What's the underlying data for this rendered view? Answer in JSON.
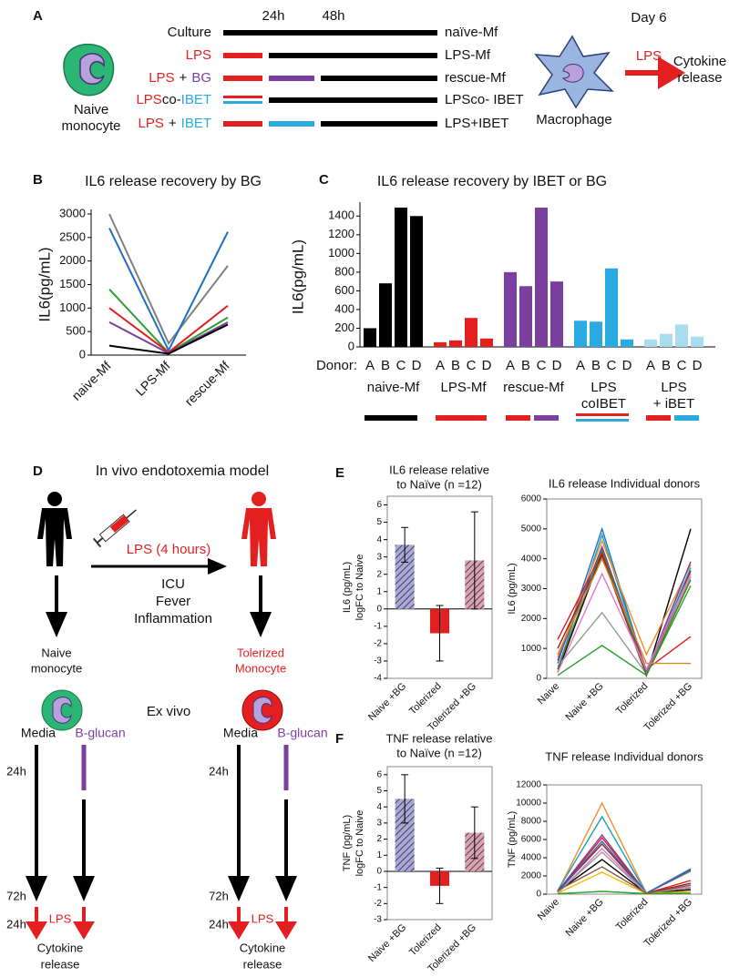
{
  "panel_a": {
    "label": "A",
    "timepoints": [
      "24h",
      "48h"
    ],
    "day": "Day 6",
    "rows": [
      {
        "treatment": [
          "Culture"
        ],
        "result": "naïve-Mf"
      },
      {
        "treatment": [
          "LPS"
        ],
        "result": "LPS-Mf"
      },
      {
        "treatment": [
          "LPS",
          "+",
          "BG"
        ],
        "result": "rescue-Mf"
      },
      {
        "treatment": [
          "LPS",
          "co-",
          "IBET"
        ],
        "result": "LPSco- IBET"
      },
      {
        "treatment": [
          "LPS",
          "+",
          "IBET"
        ],
        "result": "LPS+IBET"
      }
    ],
    "cell": [
      "Naive",
      "monocyte"
    ],
    "macrophage": "Macrophage",
    "stimulus": "LPS",
    "output": [
      "Cytokine",
      "release"
    ]
  },
  "panel_d": {
    "label": "D",
    "title": "In vivo endotoxemia model",
    "injection": "LPS (4 hours)",
    "effects": [
      "ICU",
      "Fever",
      "Inflammation"
    ],
    "ex_vivo": "Ex vivo",
    "arms": [
      {
        "cell": [
          "Naive",
          "monocyte"
        ],
        "media": "Media",
        "treatment": "B-glucan",
        "t1": "24h",
        "t2": "72h",
        "stimulus": "LPS",
        "t3": "24h",
        "output": [
          "Cytokine",
          "release"
        ]
      },
      {
        "cell": [
          "Tolerized",
          "Monocyte"
        ],
        "media": "Media",
        "treatment": "B-glucan",
        "t1": "24h",
        "t2": "72h",
        "stimulus": "LPS",
        "t3": "24h",
        "output": [
          "Cytokine",
          "release"
        ]
      }
    ]
  },
  "chart_data": [
    {
      "panel": "B",
      "type": "line",
      "title": "IL6 release recovery by BG",
      "y_label": "IL6(pg/mL)",
      "categories": [
        "naive-Mf",
        "LPS-Mf",
        "rescue-Mf"
      ],
      "ylim": [
        0,
        3000
      ],
      "yticks": [
        0,
        500,
        1000,
        1500,
        2000,
        2500,
        3000
      ],
      "frame": false,
      "series": [
        {
          "color": "#808080",
          "values": [
            3000,
            250,
            1900
          ]
        },
        {
          "color": "#1f6fc2",
          "values": [
            2700,
            100,
            2620
          ]
        },
        {
          "color": "#2ca02c",
          "values": [
            1400,
            50,
            800
          ]
        },
        {
          "color": "#e31a1c",
          "values": [
            1000,
            60,
            1050
          ]
        },
        {
          "color": "#7b3fa0",
          "values": [
            700,
            40,
            700
          ]
        },
        {
          "color": "#000000",
          "values": [
            200,
            30,
            650
          ]
        }
      ]
    },
    {
      "panel": "C",
      "type": "bar",
      "title": "IL6 release recovery by IBET or BG",
      "y_label": "IL6(pg/mL)",
      "x_prefix": "Donor:",
      "categories": [
        "A",
        "B",
        "C",
        "D"
      ],
      "ylim": [
        0,
        1500
      ],
      "yticks": [
        0,
        200,
        400,
        600,
        800,
        1000,
        1200,
        1400
      ],
      "frame": false,
      "series": [
        {
          "label": [
            "naive-Mf"
          ],
          "color": "#000000",
          "values": [
            200,
            680,
            1490,
            1400
          ]
        },
        {
          "label": [
            "LPS-Mf"
          ],
          "color": "#e41f1f",
          "values": [
            50,
            70,
            310,
            90
          ]
        },
        {
          "label": [
            "rescue-Mf"
          ],
          "color": "#7b3fa0",
          "values": [
            800,
            650,
            1490,
            700
          ]
        },
        {
          "label": [
            "LPS",
            "coIBET"
          ],
          "color": "#29abe2",
          "values": [
            280,
            270,
            840,
            80
          ]
        },
        {
          "label": [
            "LPS",
            "+ iBET"
          ],
          "color": "#a9dcee",
          "values": [
            80,
            140,
            240,
            110
          ]
        }
      ]
    },
    {
      "panel": "E",
      "type": "bar",
      "title": [
        "IL6 release relative",
        "to Naïve (n =12)"
      ],
      "y_label": [
        "IL6 (pg/mL)",
        "logFC to Naive"
      ],
      "categories": [
        "Naive +BG",
        "Tolerized",
        "Tolerized +BG"
      ],
      "values": [
        3.7,
        -1.4,
        2.8
      ],
      "errors": [
        1.0,
        1.6,
        2.8
      ],
      "colors": [
        "#a9a8d6",
        "#e41f1f",
        "#d9a3b3"
      ],
      "hatched": [
        true,
        false,
        true
      ],
      "ylim": [
        -4,
        6.5
      ],
      "yticks": [
        -4,
        -3,
        -2,
        -1,
        0,
        1,
        2,
        3,
        4,
        5,
        6
      ],
      "frame": true
    },
    {
      "type": "line",
      "title": "IL6 release Individual donors",
      "y_label": "IL6 (pg/mL)",
      "categories": [
        "Naive",
        "Naive +BG",
        "Tolerized",
        "Tolerized +BG"
      ],
      "ylim": [
        0,
        6000
      ],
      "yticks": [
        0,
        1000,
        2000,
        3000,
        4000,
        5000,
        6000
      ],
      "frame": true,
      "series": [
        {
          "color": "#000000",
          "values": [
            200,
            4200,
            100,
            5000
          ]
        },
        {
          "color": "#1f6fc2",
          "values": [
            500,
            5000,
            200,
            3900
          ]
        },
        {
          "color": "#17a2b8",
          "values": [
            300,
            4800,
            150,
            3700
          ]
        },
        {
          "color": "#f28e2b",
          "values": [
            700,
            4600,
            800,
            3800
          ]
        },
        {
          "color": "#e31a1c",
          "values": [
            1300,
            4200,
            300,
            1400
          ]
        },
        {
          "color": "#9c1c1c",
          "values": [
            1000,
            4100,
            100,
            3600
          ]
        },
        {
          "color": "#7b3fa0",
          "values": [
            600,
            4400,
            200,
            3900
          ]
        },
        {
          "color": "#999999",
          "values": [
            400,
            2200,
            150,
            3400
          ]
        },
        {
          "color": "#2ca02c",
          "values": [
            100,
            1100,
            100,
            3100
          ]
        },
        {
          "color": "#4d7c2a",
          "values": [
            300,
            4300,
            100,
            3300
          ]
        },
        {
          "color": "#c98a2b",
          "values": [
            800,
            4000,
            500,
            500
          ]
        },
        {
          "color": "#e377c2",
          "values": [
            200,
            3500,
            300,
            3500
          ]
        }
      ]
    },
    {
      "panel": "F",
      "type": "bar",
      "title": [
        "TNF release relative",
        "to Naïve (n =12)"
      ],
      "y_label": [
        "TNF (pg/mL)",
        "logFC to Naive"
      ],
      "categories": [
        "Naive +BG",
        "Tolerized",
        "Tolerized +BG"
      ],
      "values": [
        4.5,
        -0.9,
        2.4
      ],
      "errors": [
        1.5,
        1.1,
        1.6
      ],
      "colors": [
        "#a9a8d6",
        "#e41f1f",
        "#d9a3b3"
      ],
      "hatched": [
        true,
        false,
        true
      ],
      "ylim": [
        -3,
        6.5
      ],
      "yticks": [
        -3,
        -2,
        -1,
        0,
        1,
        2,
        3,
        4,
        5,
        6
      ],
      "frame": true
    },
    {
      "type": "line",
      "title": "TNF release Individual donors",
      "y_label": "TNF (pg/mL)",
      "categories": [
        "Naive",
        "Naive +BG",
        "Tolerized",
        "Tolerized +BG"
      ],
      "ylim": [
        0,
        12000
      ],
      "yticks": [
        0,
        2000,
        4000,
        6000,
        8000,
        10000,
        12000
      ],
      "frame": true,
      "series": [
        {
          "color": "#f28e2b",
          "values": [
            300,
            10000,
            100,
            2500
          ]
        },
        {
          "color": "#17a2b8",
          "values": [
            400,
            8500,
            100,
            2800
          ]
        },
        {
          "color": "#7b3fa0",
          "values": [
            300,
            6500,
            100,
            2700
          ]
        },
        {
          "color": "#e31a1c",
          "values": [
            200,
            6200,
            100,
            1500
          ]
        },
        {
          "color": "#9c1c1c",
          "values": [
            300,
            5500,
            100,
            1200
          ]
        },
        {
          "color": "#1f6fc2",
          "values": [
            200,
            5800,
            100,
            2600
          ]
        },
        {
          "color": "#e377c2",
          "values": [
            100,
            5000,
            100,
            800
          ]
        },
        {
          "color": "#000000",
          "values": [
            300,
            3800,
            100,
            500
          ]
        },
        {
          "color": "#999999",
          "values": [
            200,
            4600,
            100,
            700
          ]
        },
        {
          "color": "#f5b800",
          "values": [
            100,
            2400,
            50,
            300
          ]
        },
        {
          "color": "#2ca02c",
          "values": [
            50,
            300,
            50,
            100
          ]
        },
        {
          "color": "#8c564b",
          "values": [
            400,
            3000,
            100,
            1000
          ]
        }
      ]
    }
  ]
}
